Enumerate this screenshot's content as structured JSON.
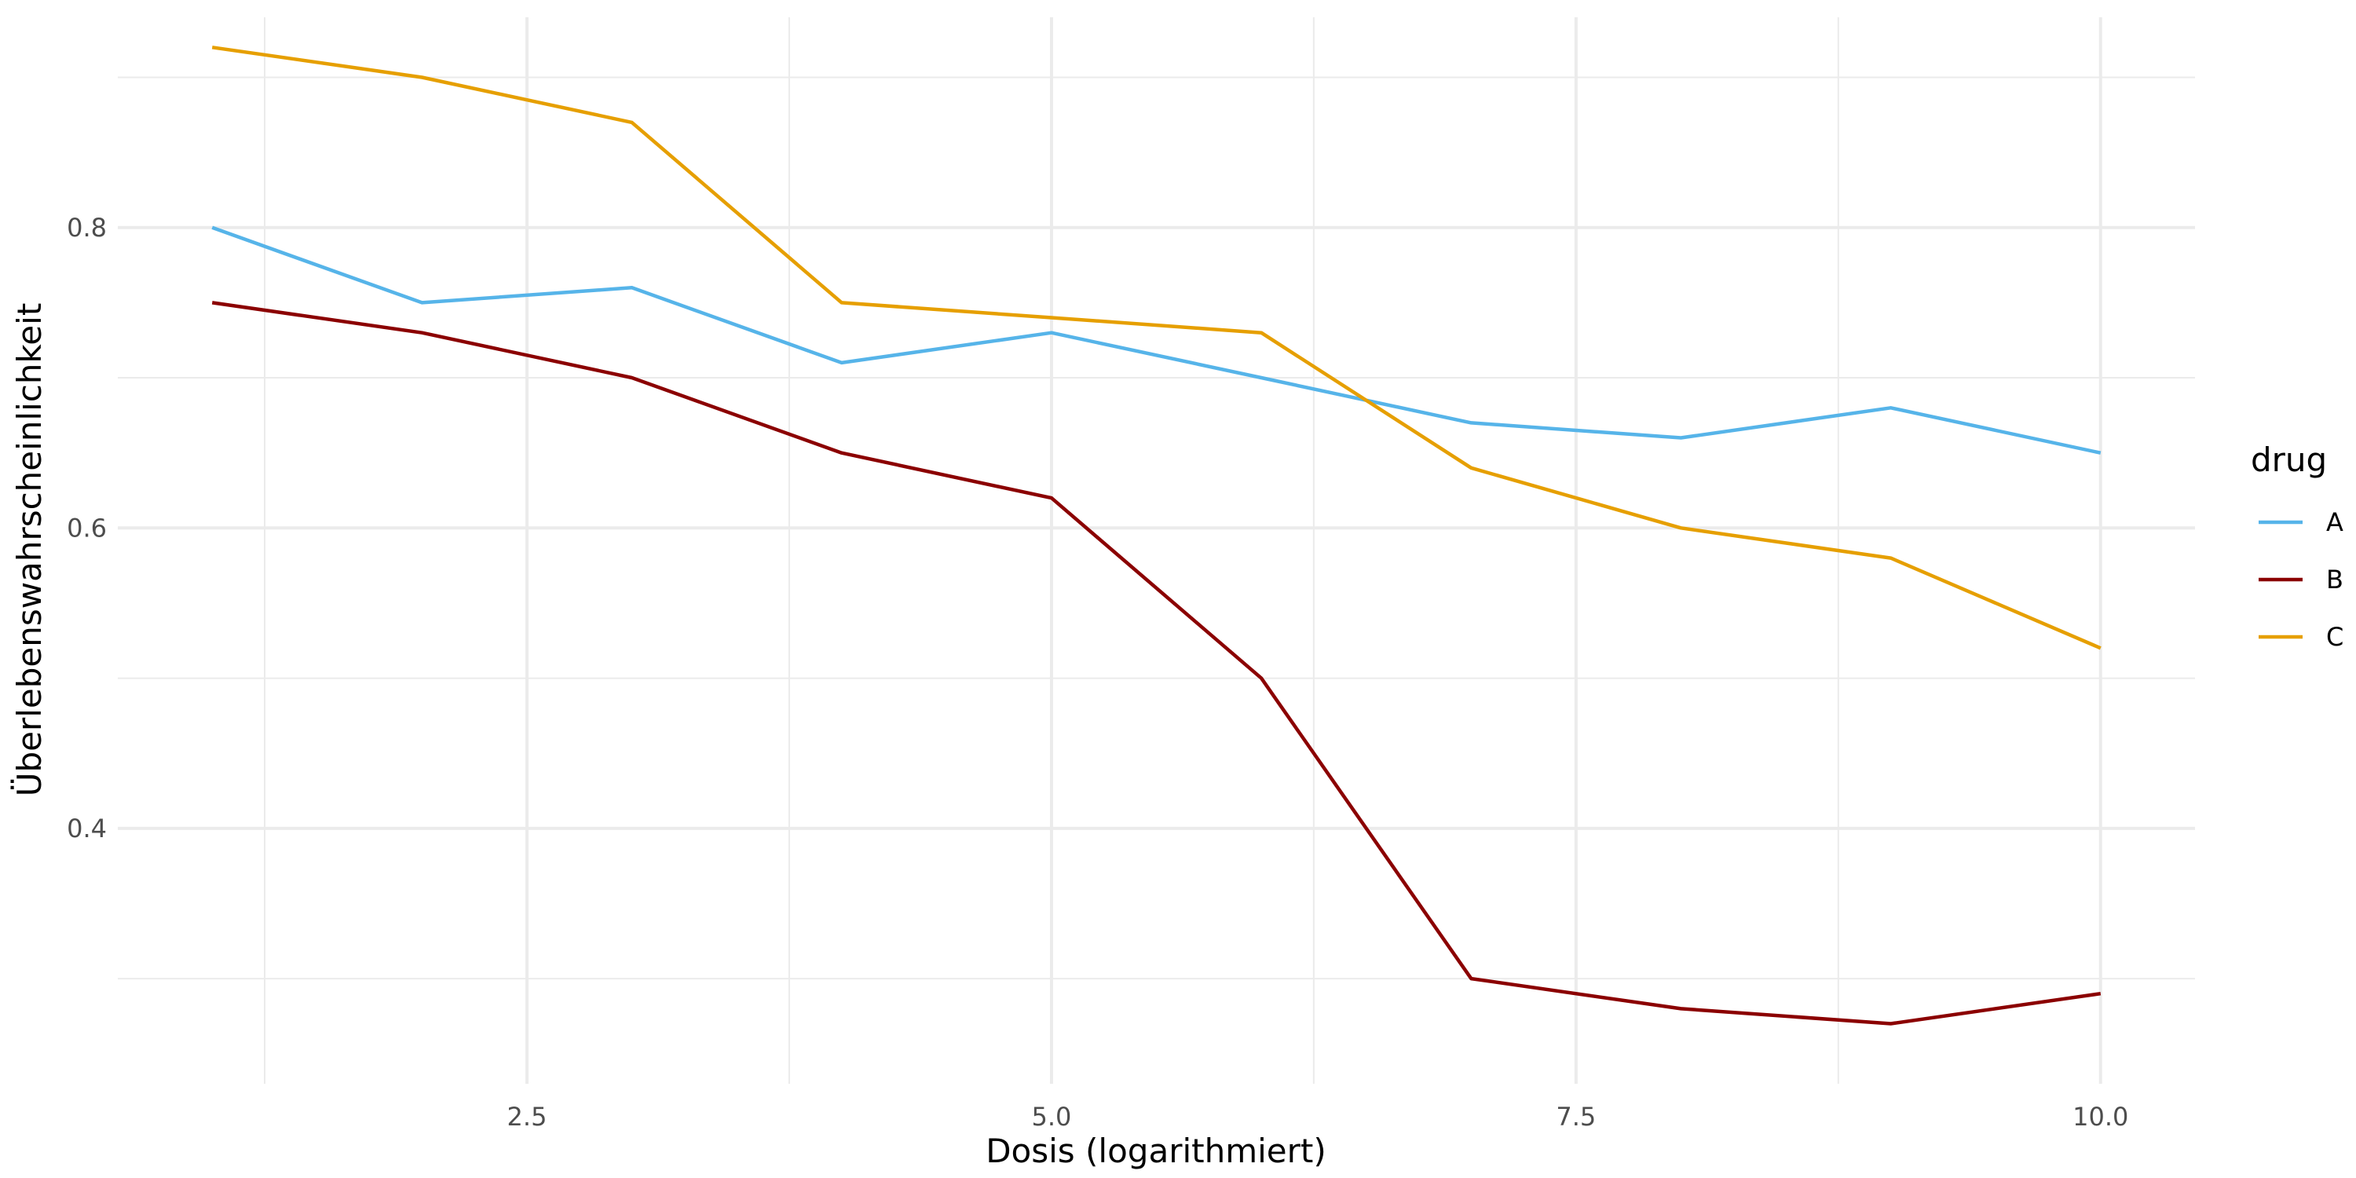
{
  "chart_data": {
    "type": "line",
    "title": "",
    "xlabel": "Dosis (logarithmiert)",
    "ylabel": "Überlebenswahrscheinlichkeit",
    "x": [
      1,
      2,
      3,
      4,
      5,
      6,
      7,
      8,
      9,
      10
    ],
    "xlim": [
      0.55,
      10.45
    ],
    "ylim": [
      0.23,
      0.94
    ],
    "x_ticks": [
      2.5,
      5.0,
      7.5,
      10.0
    ],
    "x_tick_labels": [
      "2.5",
      "5.0",
      "7.5",
      "10.0"
    ],
    "x_minor_ticks": [
      1.25,
      3.75,
      6.25,
      8.75
    ],
    "y_ticks": [
      0.4,
      0.6,
      0.8
    ],
    "y_tick_labels": [
      "0.4",
      "0.6",
      "0.8"
    ],
    "y_minor_ticks": [
      0.3,
      0.5,
      0.7,
      0.9
    ],
    "grid": true,
    "legend": {
      "title": "drug",
      "placement": "right"
    },
    "series": [
      {
        "name": "A",
        "color": "#56b4e9",
        "values": [
          0.8,
          0.75,
          0.76,
          0.71,
          0.73,
          0.7,
          0.67,
          0.66,
          0.68,
          0.65
        ]
      },
      {
        "name": "B",
        "color": "#8b0000",
        "values": [
          0.75,
          0.73,
          0.7,
          0.65,
          0.62,
          0.5,
          0.3,
          0.28,
          0.27,
          0.29
        ]
      },
      {
        "name": "C",
        "color": "#e69f00",
        "values": [
          0.92,
          0.9,
          0.87,
          0.75,
          0.74,
          0.73,
          0.64,
          0.6,
          0.58,
          0.52
        ]
      }
    ]
  }
}
